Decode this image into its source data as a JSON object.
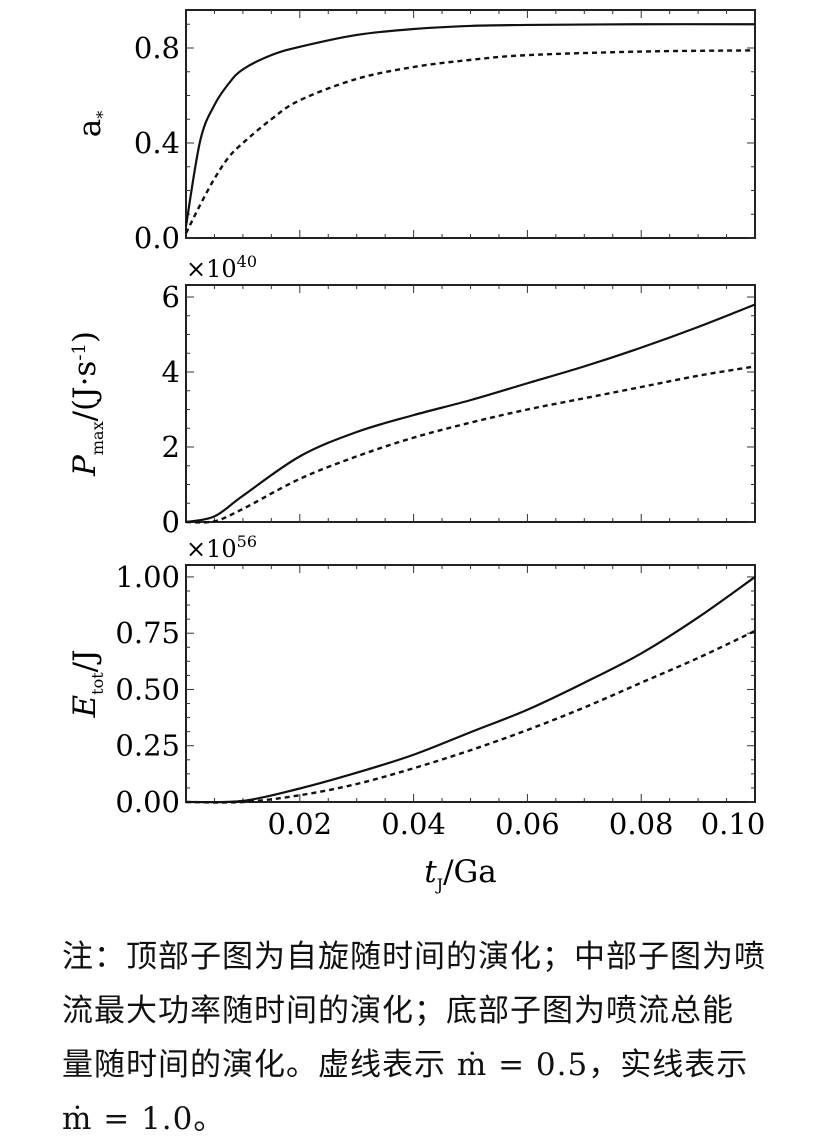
{
  "chart_data": [
    {
      "type": "line",
      "ylabel": "a",
      "ylabel_sub": "*",
      "xlim": [
        0,
        0.1
      ],
      "ylim": [
        0,
        0.96
      ],
      "yticks": [
        0.0,
        0.4,
        0.8
      ],
      "ytick_labels": [
        "0.0",
        "0.4",
        "0.8"
      ],
      "multiplier": "",
      "grid": false,
      "series": [
        {
          "style": "solid",
          "x": [
            0,
            0.0025,
            0.005,
            0.0075,
            0.01,
            0.015,
            0.02,
            0.03,
            0.04,
            0.05,
            0.06,
            0.08,
            0.1
          ],
          "y": [
            0.05,
            0.41,
            0.56,
            0.65,
            0.71,
            0.77,
            0.805,
            0.855,
            0.88,
            0.893,
            0.897,
            0.9,
            0.9
          ]
        },
        {
          "style": "dashed",
          "x": [
            0,
            0.0025,
            0.005,
            0.0075,
            0.01,
            0.015,
            0.02,
            0.03,
            0.04,
            0.05,
            0.06,
            0.08,
            0.1
          ],
          "y": [
            0.02,
            0.14,
            0.25,
            0.34,
            0.4,
            0.5,
            0.58,
            0.67,
            0.72,
            0.75,
            0.77,
            0.785,
            0.79
          ]
        }
      ]
    },
    {
      "type": "line",
      "ylabel": "P",
      "ylabel_sub": "max",
      "ylabel_rest": "/(J·s",
      "ylabel_sup": "-1",
      "ylabel_end": ")",
      "xlim": [
        0,
        0.1
      ],
      "ylim": [
        0,
        6.32
      ],
      "yticks": [
        0,
        2,
        4,
        6
      ],
      "ytick_labels": [
        "0",
        "2",
        "4",
        "6"
      ],
      "multiplier": "×10",
      "multiplier_exp": "40",
      "grid": false,
      "series": [
        {
          "style": "solid",
          "x": [
            0,
            0.005,
            0.01,
            0.02,
            0.03,
            0.04,
            0.05,
            0.06,
            0.07,
            0.08,
            0.09,
            0.1
          ],
          "y": [
            0,
            0.15,
            0.7,
            1.75,
            2.4,
            2.85,
            3.25,
            3.7,
            4.15,
            4.65,
            5.2,
            5.8
          ]
        },
        {
          "style": "dashed",
          "x": [
            0,
            0.005,
            0.01,
            0.02,
            0.03,
            0.04,
            0.05,
            0.06,
            0.07,
            0.08,
            0.09,
            0.1
          ],
          "y": [
            0,
            0.02,
            0.35,
            1.15,
            1.75,
            2.25,
            2.65,
            3.0,
            3.3,
            3.6,
            3.9,
            4.15
          ]
        }
      ]
    },
    {
      "type": "line",
      "ylabel": "E",
      "ylabel_sub": "tot",
      "ylabel_rest": "/J",
      "xlabel": "t",
      "xlabel_sub": "J",
      "xlabel_rest": "/Ga",
      "xlim": [
        0,
        0.1
      ],
      "ylim": [
        0,
        1.053
      ],
      "yticks": [
        0,
        0.25,
        0.5,
        0.75,
        1.0
      ],
      "ytick_labels": [
        "0.00",
        "0.25",
        "0.50",
        "0.75",
        "1.00"
      ],
      "xticks": [
        0.02,
        0.04,
        0.06,
        0.08,
        0.1
      ],
      "xtick_labels": [
        "0.02",
        "0.04",
        "0.06",
        "0.08",
        "0.10"
      ],
      "multiplier": "×10",
      "multiplier_exp": "56",
      "grid": false,
      "series": [
        {
          "style": "solid",
          "x": [
            0,
            0.01,
            0.02,
            0.03,
            0.04,
            0.05,
            0.06,
            0.07,
            0.08,
            0.09,
            0.1
          ],
          "y": [
            0,
            0.005,
            0.06,
            0.13,
            0.21,
            0.31,
            0.41,
            0.53,
            0.66,
            0.82,
            1.0
          ]
        },
        {
          "style": "dashed",
          "x": [
            0,
            0.01,
            0.02,
            0.03,
            0.04,
            0.05,
            0.06,
            0.07,
            0.08,
            0.09,
            0.1
          ],
          "y": [
            0,
            0.0,
            0.03,
            0.08,
            0.15,
            0.23,
            0.32,
            0.42,
            0.53,
            0.64,
            0.76
          ]
        }
      ]
    }
  ],
  "caption": {
    "lines": [
      "注：顶部子图为自旋随时间的演化；中部子图为喷",
      "流最大功率随时间的演化；底部子图为喷流总能",
      "量随时间的演化。虚线表示 ṁ = 0.5，实线表示",
      "ṁ = 1.0。"
    ]
  }
}
